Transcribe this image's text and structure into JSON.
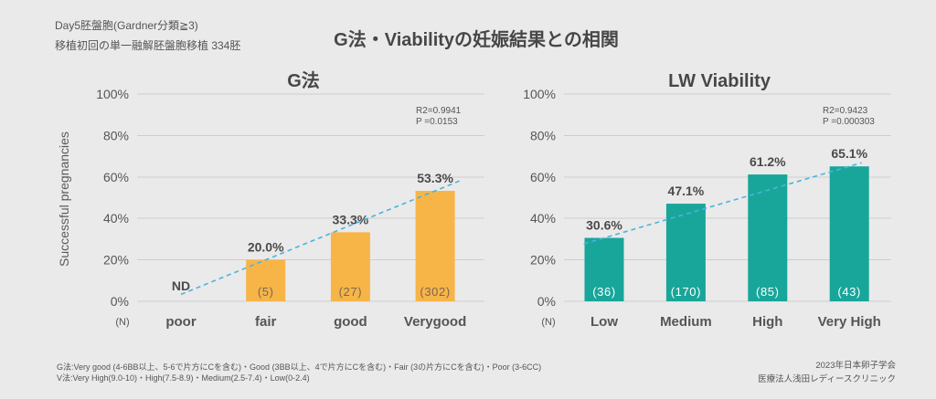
{
  "header": {
    "subtitle_line1": "Day5胚盤胞(Gardner分類≧3)",
    "subtitle_line2": "移植初回の単一融解胚盤胞移植 334胚",
    "title": "G法・Viabilityの妊娠結果との相関"
  },
  "colors": {
    "background": "#eaeaea",
    "grid": "#cdcdcd",
    "trend_line": "#4bb3de"
  },
  "chart_data": [
    {
      "type": "bar",
      "title": "G法",
      "ylabel": "Successful pregnancies",
      "ylim": [
        0,
        100
      ],
      "yticks": [
        0,
        20,
        40,
        60,
        80,
        100
      ],
      "ytick_labels": [
        "0%",
        "20%",
        "40%",
        "60%",
        "80%",
        "100%"
      ],
      "categories": [
        "poor",
        "fair",
        "good",
        "Verygood"
      ],
      "values": [
        null,
        20.0,
        33.3,
        53.3
      ],
      "value_labels": [
        "ND",
        "20.0%",
        "33.3%",
        "53.3%"
      ],
      "n_label": "(N)",
      "n": [
        null,
        "(5)",
        "(27)",
        "(302)"
      ],
      "stats": [
        "R2=0.9941",
        "P =0.0153"
      ],
      "trend_line": true,
      "grid": true,
      "bar_color": "#f7b548",
      "n_text_color": "#7a6650"
    },
    {
      "type": "bar",
      "title": "LW Viability",
      "ylim": [
        0,
        100
      ],
      "yticks": [
        0,
        20,
        40,
        60,
        80,
        100
      ],
      "ytick_labels": [
        "0%",
        "20%",
        "40%",
        "60%",
        "80%",
        "100%"
      ],
      "categories": [
        "Low",
        "Medium",
        "High",
        "Very High"
      ],
      "values": [
        30.6,
        47.1,
        61.2,
        65.1
      ],
      "value_labels": [
        "30.6%",
        "47.1%",
        "61.2%",
        "65.1%"
      ],
      "n_label": "(N)",
      "n": [
        "(36)",
        "(170)",
        "(85)",
        "(43)"
      ],
      "stats": [
        "R2=0.9423",
        "P =0.000303"
      ],
      "trend_line": true,
      "grid": true,
      "bar_color": "#18a69a",
      "n_text_color": "#ffffff"
    }
  ],
  "footnotes": [
    "G法:Very good (4-6BB以上、5-6で片方にCを含む)・Good (3BB以上、4で片方にCを含む)・Fair (3の片方にCを含む)・Poor (3-6CC)",
    "V法:Very High(9.0-10)・High(7.5-8.9)・Medium(2.5-7.4)・Low(0-2.4)"
  ],
  "credits": [
    "2023年日本卵子学会",
    "医療法人浅田レディースクリニック"
  ]
}
